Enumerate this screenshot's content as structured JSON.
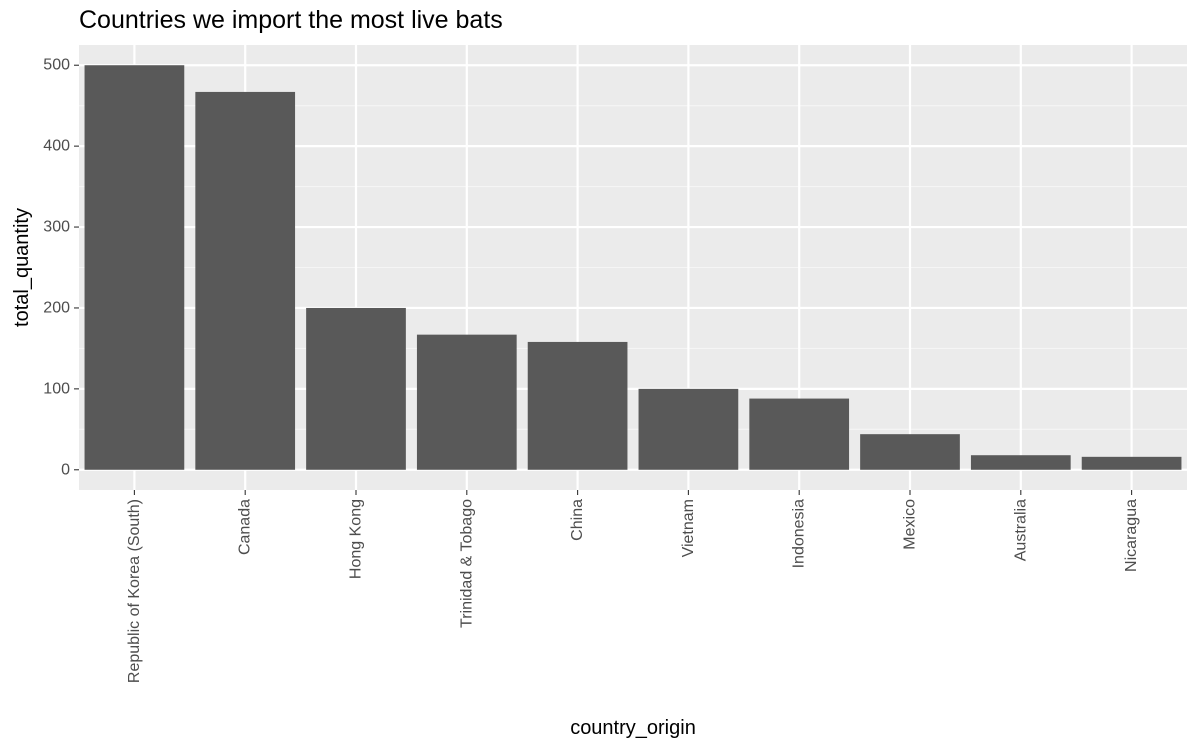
{
  "chart_data": {
    "type": "bar",
    "title": "Countries we import the most live bats",
    "xlabel": "country_origin",
    "ylabel": "total_quantity",
    "categories": [
      "Republic of Korea (South)",
      "Canada",
      "Hong Kong",
      "Trinidad & Tobago",
      "China",
      "Vietnam",
      "Indonesia",
      "Mexico",
      "Australia",
      "Nicaragua"
    ],
    "values": [
      500,
      467,
      200,
      167,
      158,
      100,
      88,
      44,
      18,
      16
    ],
    "ylim": [
      -25,
      525
    ],
    "yticks": [
      0,
      100,
      200,
      300,
      400,
      500
    ],
    "grid": true,
    "legend": "none",
    "colors": {
      "bar": "#595959",
      "panel": "#ebebeb",
      "grid_major": "#ffffff",
      "grid_minor": "#f5f5f5",
      "tick_label": "#4d4d4d",
      "tick_mark": "#333333"
    }
  }
}
